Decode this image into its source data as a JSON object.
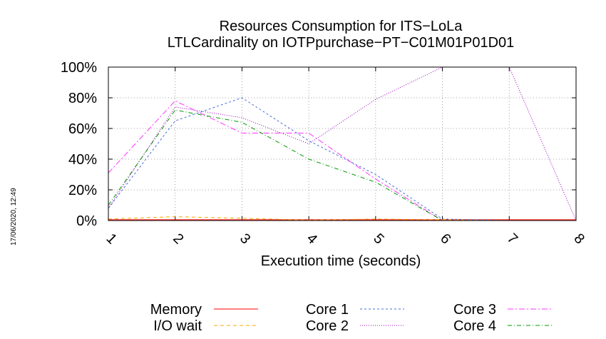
{
  "chart_data": {
    "type": "line",
    "title": "Resources Consumption for ITS−LoLa",
    "subtitle": "LTLCardinality on IOTPpurchase−PT−C01M01P01D01",
    "xlabel": "Execution time (seconds)",
    "ylabel": "",
    "timestamp": "17/06/2020, 12:49",
    "x": [
      1,
      2,
      3,
      4,
      5,
      6,
      7,
      8
    ],
    "xlim": [
      1,
      8
    ],
    "ylim": [
      0,
      100
    ],
    "x_tick_labels": [
      "1",
      "2",
      "3",
      "4",
      "5",
      "6",
      "7",
      "8"
    ],
    "y_ticks": [
      0,
      20,
      40,
      60,
      80,
      100
    ],
    "y_tick_labels": [
      "0%",
      "20%",
      "40%",
      "60%",
      "80%",
      "100%"
    ],
    "grid": true,
    "legend_position": "bottom",
    "series": [
      {
        "name": "Memory",
        "color": "#ff0000",
        "dash": "",
        "values": [
          0.5,
          0.5,
          0.5,
          0.5,
          0.5,
          0.5,
          0.5,
          0.5
        ]
      },
      {
        "name": "I/O wait",
        "color": "#ffa500",
        "dash": "5,4",
        "values": [
          1,
          2.5,
          1.5,
          0.3,
          1,
          0.5,
          0,
          0
        ]
      },
      {
        "name": "Core 1",
        "color": "#4a6fd8",
        "dash": "3,3",
        "values": [
          8,
          65,
          80,
          52,
          30,
          1,
          0,
          0
        ]
      },
      {
        "name": "Core 2",
        "color": "#a000c0",
        "dash": "1,2",
        "values": [
          8,
          74,
          67,
          50,
          79,
          100,
          100,
          0
        ]
      },
      {
        "name": "Core 3",
        "color": "#ff33ff",
        "dash": "8,3,2,3",
        "values": [
          31,
          78,
          57,
          57,
          27,
          0,
          0,
          0
        ]
      },
      {
        "name": "Core 4",
        "color": "#009900",
        "dash": "6,3,1,3",
        "values": [
          10,
          72,
          64,
          40,
          25,
          0,
          0,
          0
        ]
      }
    ]
  }
}
